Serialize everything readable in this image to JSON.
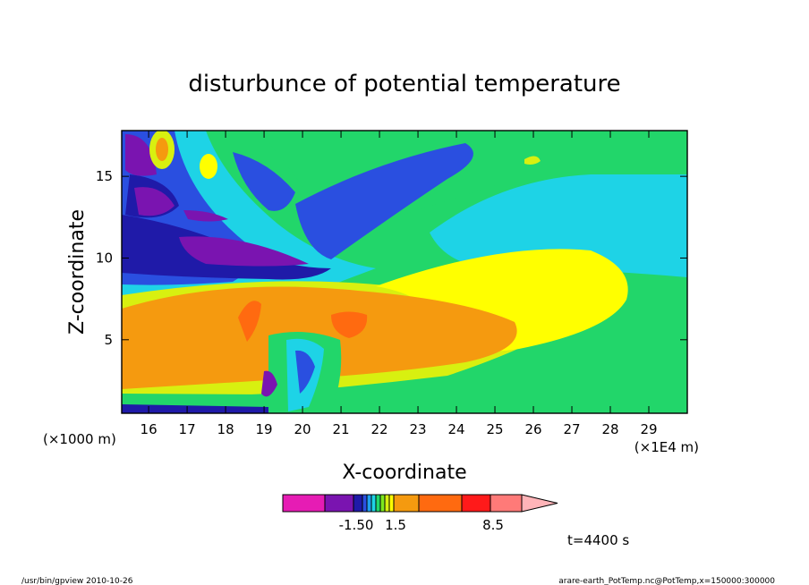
{
  "chart_data": {
    "type": "heatmap",
    "title": "disturbunce of potential temperature",
    "xlabel": "X-coordinate",
    "ylabel": "Z-coordinate",
    "x_unit": "(×1E4 m)",
    "y_unit": "(×1000 m)",
    "xlim": [
      15.3,
      30.0
    ],
    "ylim": [
      0.5,
      17.8
    ],
    "x_ticks": [
      16,
      17,
      18,
      19,
      20,
      21,
      22,
      23,
      24,
      25,
      26,
      27,
      28,
      29
    ],
    "y_ticks": [
      5,
      10,
      15
    ],
    "colorbar": {
      "colors": [
        "#e61cb4",
        "#7a14b0",
        "#1f1aa8",
        "#2a4fe0",
        "#1fa0f0",
        "#1ed3e6",
        "#22d66a",
        "#7de81e",
        "#d8f010",
        "#ffff00",
        "#f59a0f",
        "#ff6a10",
        "#ff1a1a",
        "#ff7a78",
        "#ffb4b8"
      ],
      "labels": [
        "-1.50",
        "1.5",
        "8.5"
      ]
    },
    "annotation": "t=4400 s",
    "footer_left": "/usr/bin/gpview   2010-10-26",
    "footer_right": "arare-earth_PotTemp.nc@PotTemp,x=150000:300000"
  }
}
